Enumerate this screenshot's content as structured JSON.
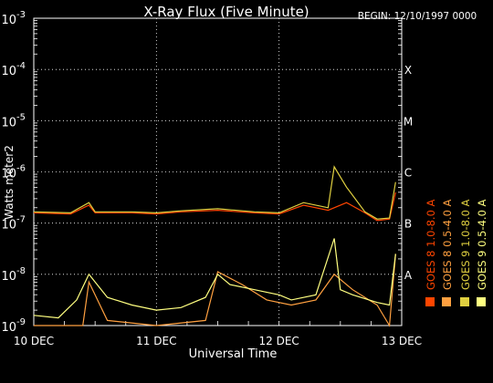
{
  "chart_data": {
    "type": "line",
    "title": "X-Ray Flux (Five Minute)",
    "begin_label": "BEGIN: 12/10/1997 0000",
    "xlabel": "Universal Time",
    "ylabel": "Watts meter2",
    "x_ticks": [
      "10 DEC",
      "11 DEC",
      "12 DEC",
      "13 DEC"
    ],
    "xlim_days": [
      10,
      13
    ],
    "ylim_exp": [
      -9,
      -3
    ],
    "y_scale": "log",
    "y_ticks": [
      {
        "base": "10",
        "exp": "-3",
        "value_exp": -3
      },
      {
        "base": "10",
        "exp": "-4",
        "value_exp": -4
      },
      {
        "base": "10",
        "exp": "-5",
        "value_exp": -5
      },
      {
        "base": "10",
        "exp": "-6",
        "value_exp": -6
      },
      {
        "base": "10",
        "exp": "-7",
        "value_exp": -7
      },
      {
        "base": "10",
        "exp": "-8",
        "value_exp": -8
      },
      {
        "base": "10",
        "exp": "-9",
        "value_exp": -9
      }
    ],
    "flare_classes": [
      {
        "label": "X",
        "value_exp": -4
      },
      {
        "label": "M",
        "value_exp": -5
      },
      {
        "label": "C",
        "value_exp": -6
      },
      {
        "label": "B",
        "value_exp": -7
      },
      {
        "label": "A",
        "value_exp": -8
      }
    ],
    "grid": "dotted, major decades and days",
    "legend_placement": "right, vertical",
    "series": [
      {
        "name": "GOES 8 1.0-8.0 A",
        "color": "#ff4500",
        "x": [
          10.0,
          10.3,
          10.45,
          10.5,
          10.8,
          11.0,
          11.2,
          11.5,
          11.8,
          12.0,
          12.2,
          12.4,
          12.55,
          12.7,
          12.8,
          12.9,
          12.95
        ],
        "y_exp": [
          -6.8,
          -6.82,
          -6.65,
          -6.8,
          -6.8,
          -6.82,
          -6.78,
          -6.75,
          -6.8,
          -6.82,
          -6.65,
          -6.75,
          -6.6,
          -6.8,
          -6.95,
          -6.92,
          -6.4
        ]
      },
      {
        "name": "GOES 8 0.5-4.0 A",
        "color": "#ffa040",
        "x": [
          10.0,
          10.4,
          10.45,
          10.6,
          11.0,
          11.4,
          11.5,
          11.7,
          11.9,
          12.1,
          12.3,
          12.45,
          12.6,
          12.8,
          12.9,
          12.95
        ],
        "y_exp": [
          -9.0,
          -9.0,
          -8.15,
          -8.9,
          -9.0,
          -8.9,
          -7.95,
          -8.2,
          -8.5,
          -8.6,
          -8.5,
          -8.0,
          -8.3,
          -8.6,
          -9.0,
          -7.6
        ]
      },
      {
        "name": "GOES 9 1.0-8.0 A",
        "color": "#e0d040",
        "x": [
          10.0,
          10.3,
          10.45,
          10.5,
          10.8,
          11.0,
          11.2,
          11.5,
          11.8,
          12.0,
          12.2,
          12.4,
          12.45,
          12.55,
          12.7,
          12.8,
          12.9,
          12.95
        ],
        "y_exp": [
          -6.78,
          -6.8,
          -6.6,
          -6.78,
          -6.78,
          -6.8,
          -6.76,
          -6.72,
          -6.78,
          -6.8,
          -6.6,
          -6.7,
          -5.9,
          -6.3,
          -6.78,
          -6.92,
          -6.9,
          -6.2
        ]
      },
      {
        "name": "GOES 9 0.5-4.0 A",
        "color": "#ffff80",
        "x": [
          10.0,
          10.2,
          10.35,
          10.45,
          10.6,
          10.8,
          11.0,
          11.2,
          11.4,
          11.5,
          11.6,
          11.8,
          12.0,
          12.1,
          12.3,
          12.45,
          12.5,
          12.6,
          12.8,
          12.9,
          12.95
        ],
        "y_exp": [
          -8.8,
          -8.85,
          -8.5,
          -8.0,
          -8.45,
          -8.6,
          -8.7,
          -8.65,
          -8.45,
          -8.0,
          -8.2,
          -8.3,
          -8.4,
          -8.5,
          -8.4,
          -7.3,
          -8.3,
          -8.4,
          -8.55,
          -8.6,
          -7.6
        ]
      }
    ]
  }
}
